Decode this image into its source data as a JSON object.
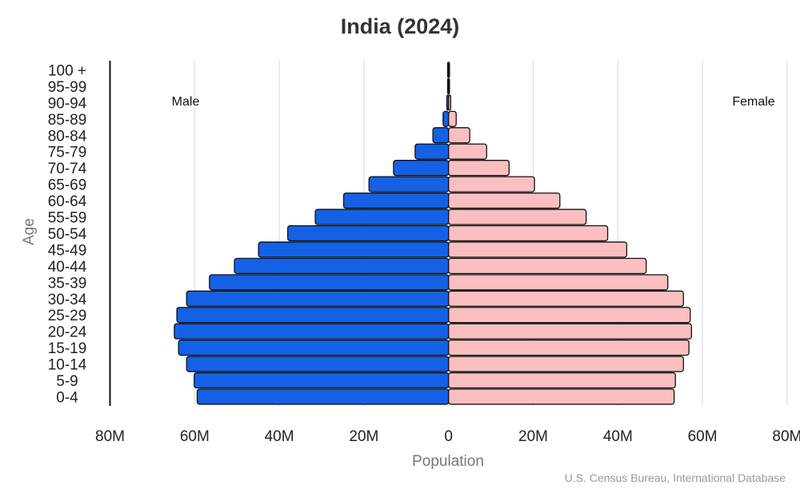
{
  "chart_data": {
    "type": "bar",
    "orientation": "horizontal-pyramid",
    "title": "India (2024)",
    "xlabel": "Population",
    "ylabel": "Age",
    "source": "U.S. Census Bureau, International Database",
    "categories": [
      "0-4",
      "5-9",
      "10-14",
      "15-19",
      "20-24",
      "25-29",
      "30-34",
      "35-39",
      "40-44",
      "45-49",
      "50-54",
      "55-59",
      "60-64",
      "65-69",
      "70-74",
      "75-79",
      "80-84",
      "85-89",
      "90-94",
      "95-99",
      "100 +"
    ],
    "series": [
      {
        "name": "Male",
        "side": "left",
        "color": "#1461e6",
        "values": [
          59.4,
          60.1,
          61.9,
          63.8,
          64.8,
          64.2,
          61.9,
          56.5,
          50.6,
          44.9,
          38.0,
          31.5,
          24.8,
          18.8,
          13.0,
          7.9,
          3.7,
          1.3,
          0.4,
          0.1,
          0.02
        ]
      },
      {
        "name": "Female",
        "side": "right",
        "color": "#fbbfbf",
        "values": [
          53.3,
          53.6,
          55.5,
          56.8,
          57.4,
          57.1,
          55.5,
          51.8,
          46.7,
          42.1,
          37.6,
          32.5,
          26.3,
          20.3,
          14.3,
          9.0,
          5.0,
          1.8,
          0.5,
          0.1,
          0.02
        ]
      }
    ],
    "unit": "millions",
    "xlim": [
      -80,
      80
    ],
    "x_ticks": [
      "80M",
      "60M",
      "40M",
      "20M",
      "0",
      "20M",
      "40M",
      "60M",
      "80M"
    ],
    "x_tick_values": [
      -80,
      -60,
      -40,
      -20,
      0,
      20,
      40,
      60,
      80
    ],
    "grid": "vertical",
    "legend": "inline labels top-left (Male) and top-right (Female)"
  }
}
